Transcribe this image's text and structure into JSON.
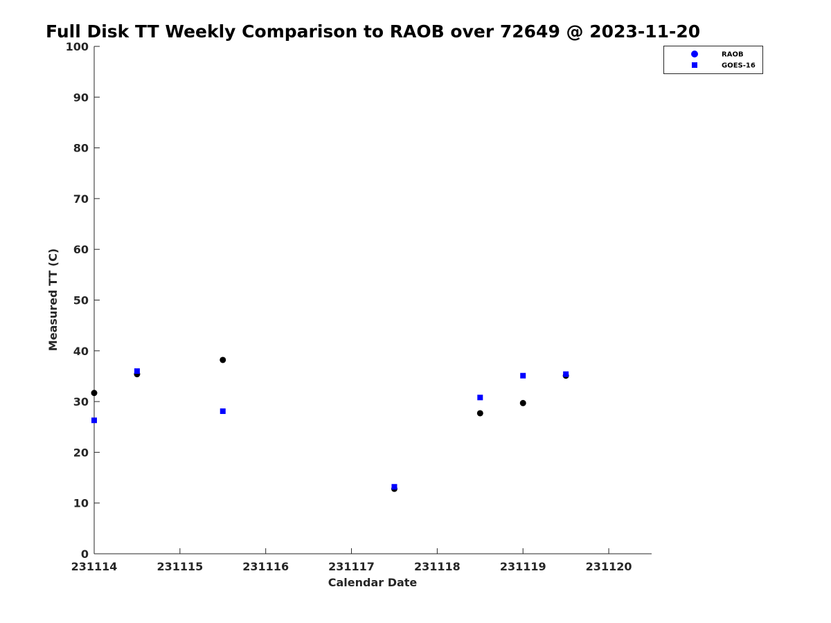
{
  "chart_data": {
    "type": "scatter",
    "title": "Full Disk TT Weekly Comparison to RAOB over 72649 @ 2023-11-20",
    "xlabel": "Calendar Date",
    "ylabel": "Measured TT (C)",
    "xlim": [
      0,
      6.5
    ],
    "ylim": [
      0,
      100
    ],
    "x_ticks": [
      0,
      1,
      2,
      3,
      4,
      5,
      6
    ],
    "x_tick_labels": [
      "231114",
      "231115",
      "231116",
      "231117",
      "231118",
      "231119",
      "231120"
    ],
    "y_ticks": [
      0,
      10,
      20,
      30,
      40,
      50,
      60,
      70,
      80,
      90,
      100
    ],
    "y_tick_labels": [
      "0",
      "10",
      "20",
      "30",
      "40",
      "50",
      "60",
      "70",
      "80",
      "90",
      "100"
    ],
    "grid": false,
    "legend_position": "top-right",
    "series": [
      {
        "name": "RAOB",
        "marker": "circle",
        "color": "#000000",
        "legend_color": "#0000ff",
        "x": [
          0,
          0.5,
          1.5,
          3.5,
          4.5,
          5.0,
          5.5
        ],
        "y": [
          31.7,
          35.4,
          38.2,
          12.8,
          27.7,
          29.7,
          35.1
        ]
      },
      {
        "name": "GOES-16",
        "marker": "square",
        "color": "#0000ff",
        "legend_color": "#0000ff",
        "x": [
          0,
          0.5,
          1.5,
          3.5,
          4.5,
          5.0,
          5.5
        ],
        "y": [
          26.3,
          36.0,
          28.1,
          13.2,
          30.8,
          35.1,
          35.4
        ]
      }
    ]
  }
}
